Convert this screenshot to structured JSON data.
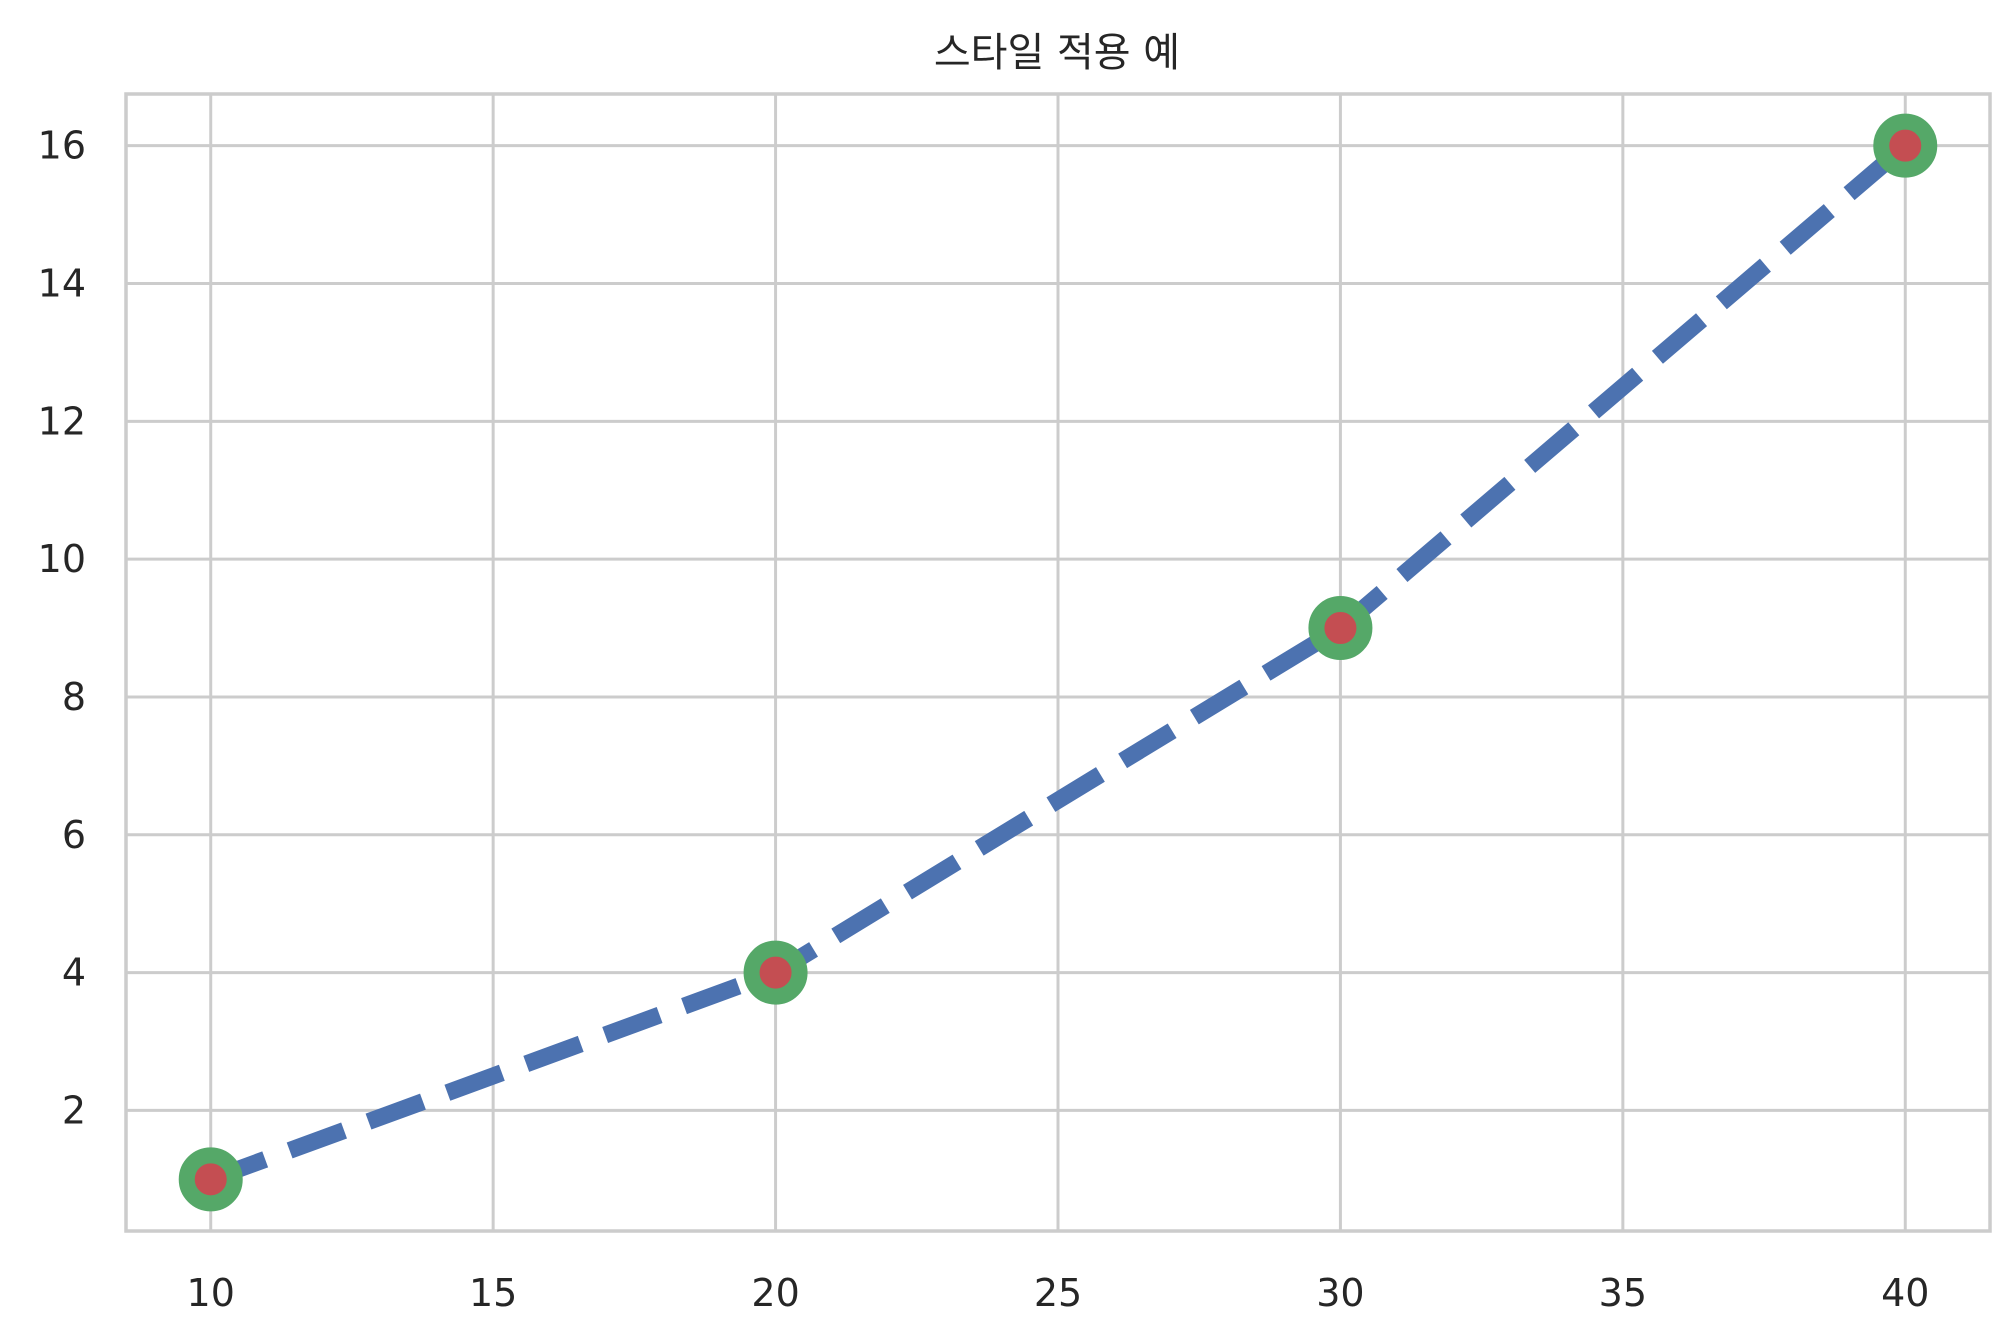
{
  "chart_data": {
    "type": "line",
    "title": "스타일 적용 예",
    "xlabel": "",
    "ylabel": "",
    "x": [
      10,
      20,
      30,
      40
    ],
    "series": [
      {
        "values": [
          1,
          4,
          9,
          16
        ],
        "line_color": "#4c72b0",
        "line_style": "dashed",
        "marker": "circle",
        "marker_face_color": "#c44e52",
        "marker_edge_color": "#55a868"
      }
    ],
    "xlim": [
      8.5,
      41.5
    ],
    "ylim": [
      0.25,
      16.75
    ],
    "xticks": [
      10,
      15,
      20,
      25,
      30,
      35,
      40
    ],
    "yticks": [
      2,
      4,
      6,
      8,
      10,
      12,
      14,
      16
    ],
    "grid": true,
    "legend": false
  }
}
